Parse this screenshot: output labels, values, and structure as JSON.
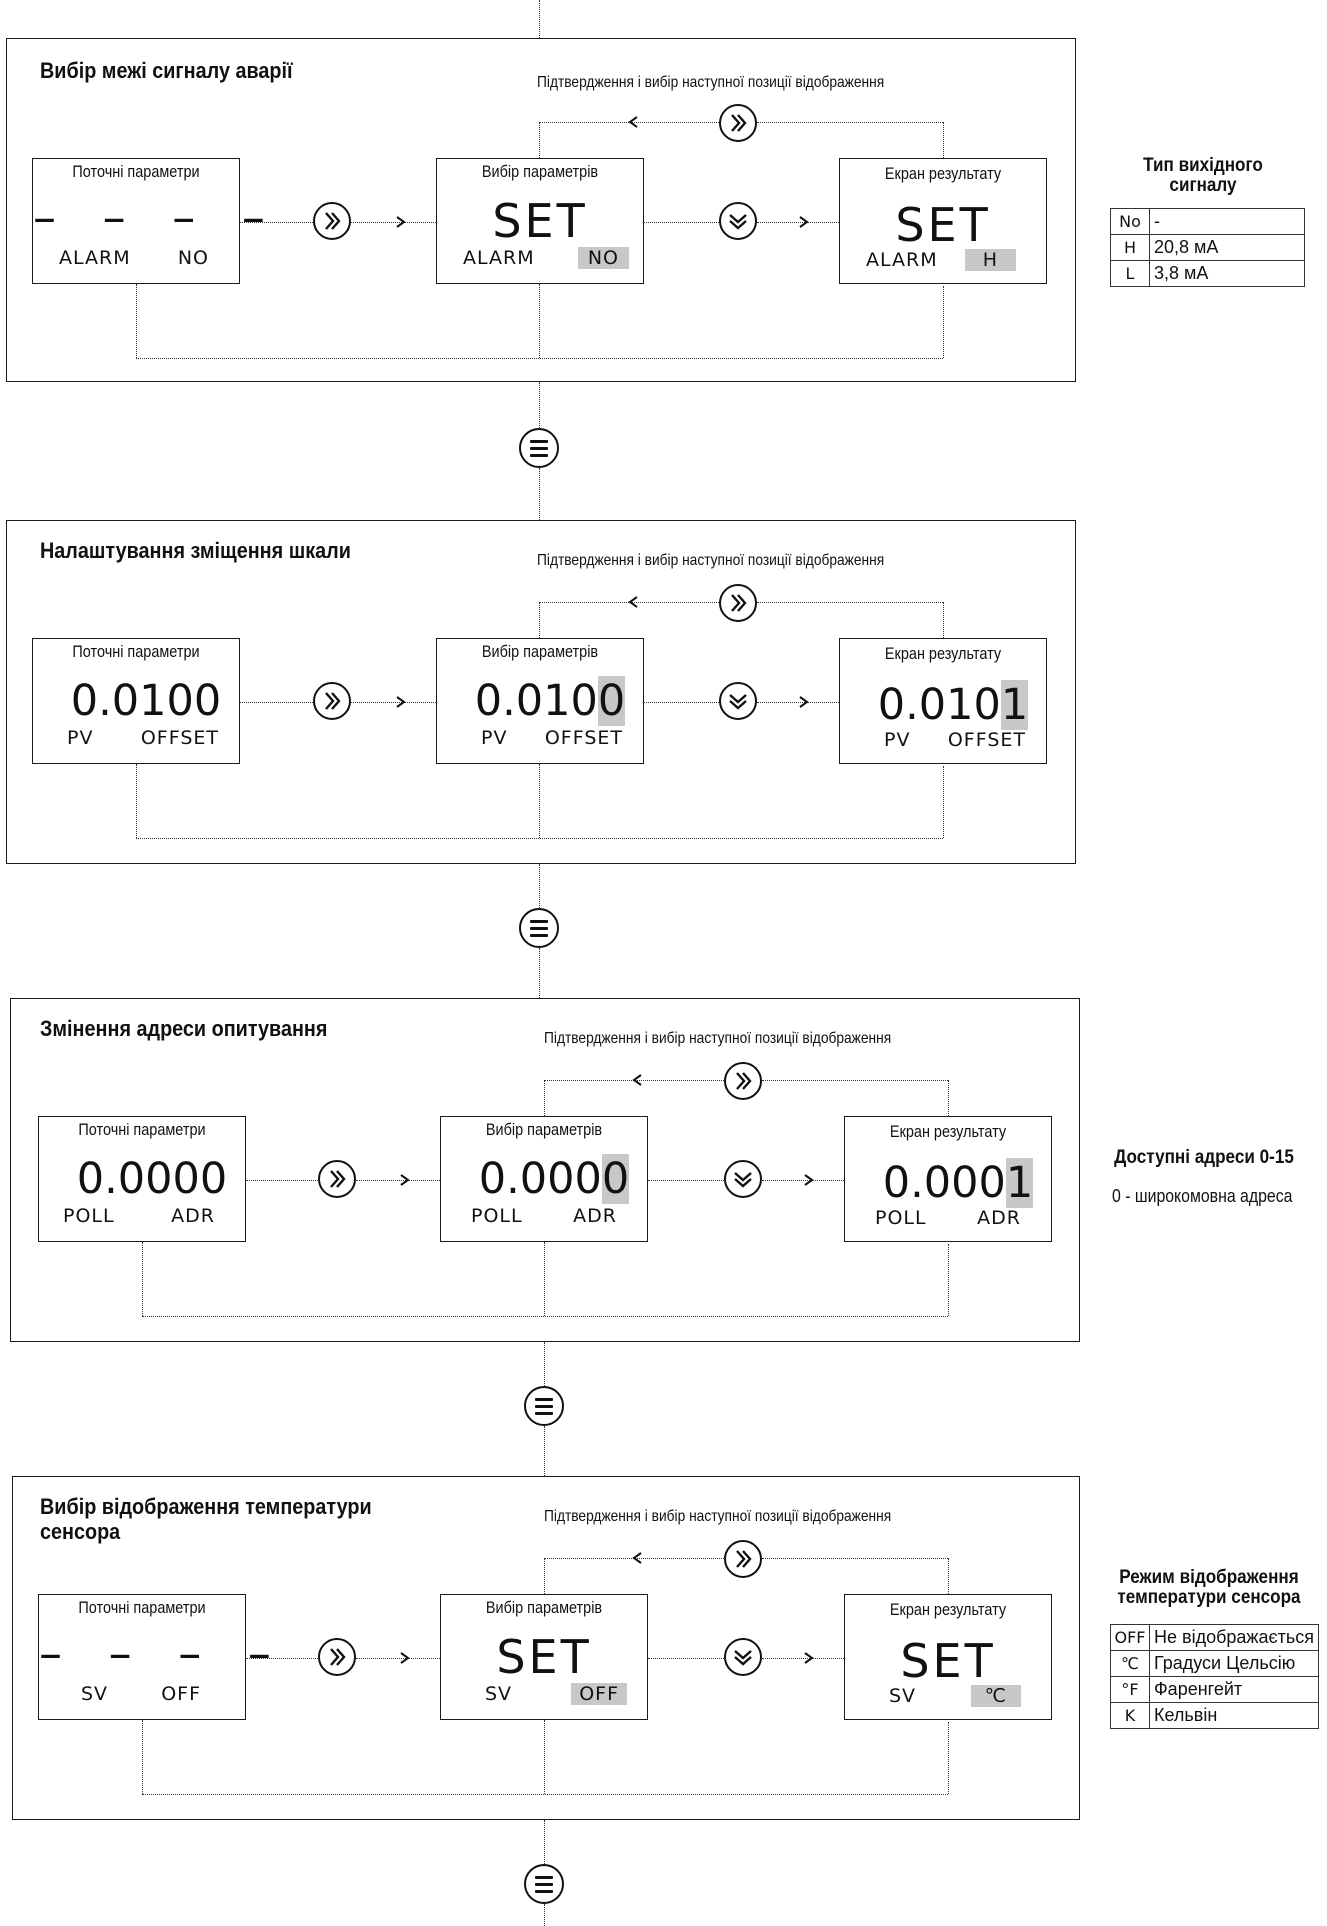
{
  "confirm_text": "Підтвердження і вибір наступної позиції відображення",
  "screen_labels": {
    "current": "Поточні параметри",
    "select": "Вибір параметрів",
    "result": "Екран результату"
  },
  "sections": [
    {
      "title": "Вибір межі сигналу аварії",
      "current": {
        "value": "– – – – –",
        "left": "ALARM",
        "right": "NO"
      },
      "select": {
        "value": "SET",
        "left": "ALARM",
        "right": "NO"
      },
      "result": {
        "value": "SET",
        "left": "ALARM",
        "right": "H"
      }
    },
    {
      "title": "Налаштування зміщення шкали",
      "current": {
        "value": "0.0100",
        "left": "PV",
        "right": "OFFSET"
      },
      "select": {
        "value_main": "0.010",
        "value_hl": "0",
        "left": "PV",
        "right": "OFFSET"
      },
      "result": {
        "value_main": "0.010",
        "value_hl": "1",
        "left": "PV",
        "right": "OFFSET"
      }
    },
    {
      "title": "Змінення адреси опитування",
      "current": {
        "value": "0.0000",
        "left": "POLL",
        "right": "ADR"
      },
      "select": {
        "value_main": "0.000",
        "value_hl": "0",
        "left": "POLL",
        "right": "ADR"
      },
      "result": {
        "value_main": "0.000",
        "value_hl": "1",
        "left": "POLL",
        "right": "ADR"
      }
    },
    {
      "title": "Вибір відображення температури\nсенсора",
      "current": {
        "value": "– – – – –",
        "left": "SV",
        "right": "OFF"
      },
      "select": {
        "value": "SET",
        "left": "SV",
        "right": "OFF"
      },
      "result": {
        "value": "SET",
        "left": "SV",
        "right": "℃"
      }
    }
  ],
  "side_output": {
    "title": "Тип вихідного\nсигналу",
    "rows": [
      {
        "code": "No",
        "desc": "-"
      },
      {
        "code": "H",
        "desc": "20,8 мА"
      },
      {
        "code": "L",
        "desc": "3,8 мА"
      }
    ]
  },
  "side_address": {
    "title": "Доступні адреси 0-15",
    "note": "0 - широкомовна адреса"
  },
  "side_temp": {
    "title": "Режим відображення\nтемператури сенсора",
    "rows": [
      {
        "code": "OFF",
        "desc": "Не відображається"
      },
      {
        "code": "℃",
        "desc": "Градуси Цельсію"
      },
      {
        "code": "°F",
        "desc": "Фаренгейт"
      },
      {
        "code": "K",
        "desc": "Кельвін"
      }
    ]
  }
}
